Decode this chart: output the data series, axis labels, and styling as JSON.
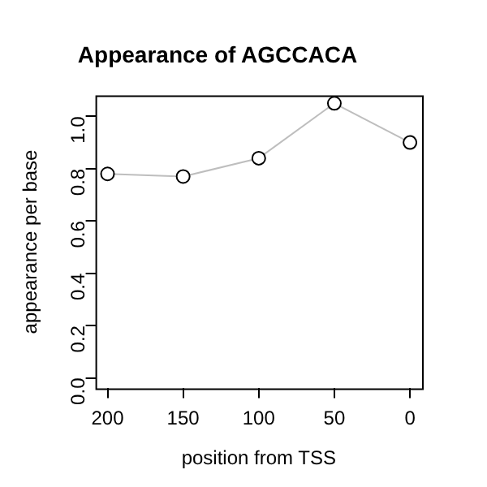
{
  "chart_data": {
    "type": "line",
    "title": "Appearance of AGCCACA",
    "xlabel": "position from TSS",
    "ylabel": "appearance per base",
    "x": [
      200,
      150,
      100,
      50,
      0
    ],
    "series": [
      {
        "color": "#bebebe",
        "values": [
          0.78,
          0.77,
          0.84,
          1.05,
          0.9
        ]
      }
    ],
    "xlim": [
      208,
      -8
    ],
    "xticks": [
      200,
      150,
      100,
      50,
      0
    ],
    "ylim": [
      -0.04,
      1.08
    ],
    "yticks": [
      {
        "value": 0,
        "label": "0.0"
      },
      {
        "value": 0.2,
        "label": "0.2"
      },
      {
        "value": 0.4,
        "label": "0.4"
      },
      {
        "value": 0.6,
        "label": "0.6"
      },
      {
        "value": 0.8,
        "label": "0.8"
      },
      {
        "value": 1,
        "label": "1.0"
      }
    ],
    "marker": "circle",
    "grid": false,
    "legend": false
  }
}
